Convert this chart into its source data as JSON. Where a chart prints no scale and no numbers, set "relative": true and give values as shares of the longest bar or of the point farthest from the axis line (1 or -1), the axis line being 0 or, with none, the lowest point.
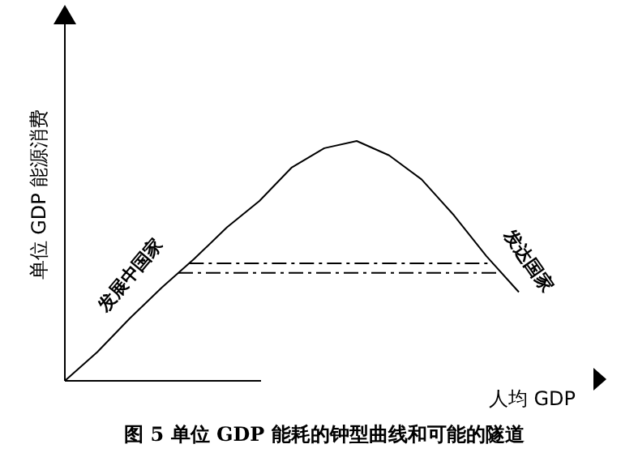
{
  "chart_data": {
    "type": "line",
    "relative": true,
    "title": "图 5 单位 GDP 能耗的钟型曲线和可能的隧道",
    "xlabel": "人均 GDP",
    "ylabel": "单位 GDP 能源消费",
    "categories": [
      null,
      null,
      null,
      null,
      null,
      null,
      null,
      null,
      null,
      null,
      null,
      null,
      null,
      null,
      null
    ],
    "series": [
      {
        "color": "#000000",
        "values": [
          0,
          0.12,
          0.26,
          0.39,
          0.51,
          0.64,
          0.75,
          0.89,
          0.97,
          1,
          0.94,
          0.84,
          0.69,
          0.52,
          0.37
        ]
      }
    ],
    "ref_lines": [
      {
        "axis": "y",
        "value": 0.49,
        "color": "#000000",
        "line_style": "dashdot"
      },
      {
        "axis": "y",
        "value": 0.45,
        "color": "#000000",
        "line_style": "dashdot"
      }
    ],
    "annotations": [
      "发展中国家",
      "发达国家"
    ],
    "marker": "none",
    "line_style": "solid"
  }
}
